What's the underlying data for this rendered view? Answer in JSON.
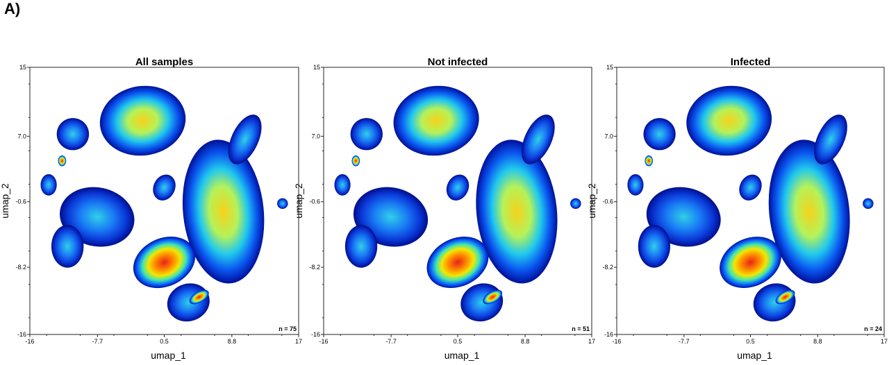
{
  "figure": {
    "panel_label": "A)"
  },
  "chart_data": [
    {
      "type": "scatter",
      "title": "All samples",
      "xlabel": "umap_1",
      "ylabel": "umap_2",
      "xlim": [
        -16,
        17
      ],
      "ylim": [
        -16,
        15
      ],
      "xticks": [
        "-16",
        "-7.7",
        "0.5",
        "8.8",
        "17"
      ],
      "yticks": [
        "15",
        "7.0",
        "-0.6",
        "-8.2",
        "-16"
      ],
      "annotation": "n = 75",
      "colormap": [
        "#00007f",
        "#0026ff",
        "#00c8ff",
        "#7dff7a",
        "#ffe600",
        "#ff5a00",
        "#d90000"
      ],
      "grid": false
    },
    {
      "type": "scatter",
      "title": "Not infected",
      "xlabel": "umap_1",
      "ylabel": "umap_2",
      "xlim": [
        -16,
        17
      ],
      "ylim": [
        -16,
        15
      ],
      "xticks": [
        "-16",
        "-7.7",
        "0.5",
        "8.8",
        "17"
      ],
      "yticks": [
        "15",
        "7.0",
        "-0.6",
        "-8.2",
        "-16"
      ],
      "annotation": "n = 51",
      "colormap": [
        "#00007f",
        "#0026ff",
        "#00c8ff",
        "#7dff7a",
        "#ffe600",
        "#ff5a00",
        "#d90000"
      ],
      "grid": false
    },
    {
      "type": "scatter",
      "title": "Infected",
      "xlabel": "umap_1",
      "ylabel": "umap_2",
      "xlim": [
        -16,
        17
      ],
      "ylim": [
        -16,
        15
      ],
      "xticks": [
        "-16",
        "-7.7",
        "0.5",
        "8.8",
        "17"
      ],
      "yticks": [
        "15",
        "7.0",
        "-0.6",
        "-8.2",
        "-16"
      ],
      "annotation": "n = 24",
      "colormap": [
        "#00007f",
        "#0026ff",
        "#00c8ff",
        "#7dff7a",
        "#ffe600",
        "#ff5a00",
        "#d90000"
      ],
      "grid": false
    }
  ]
}
